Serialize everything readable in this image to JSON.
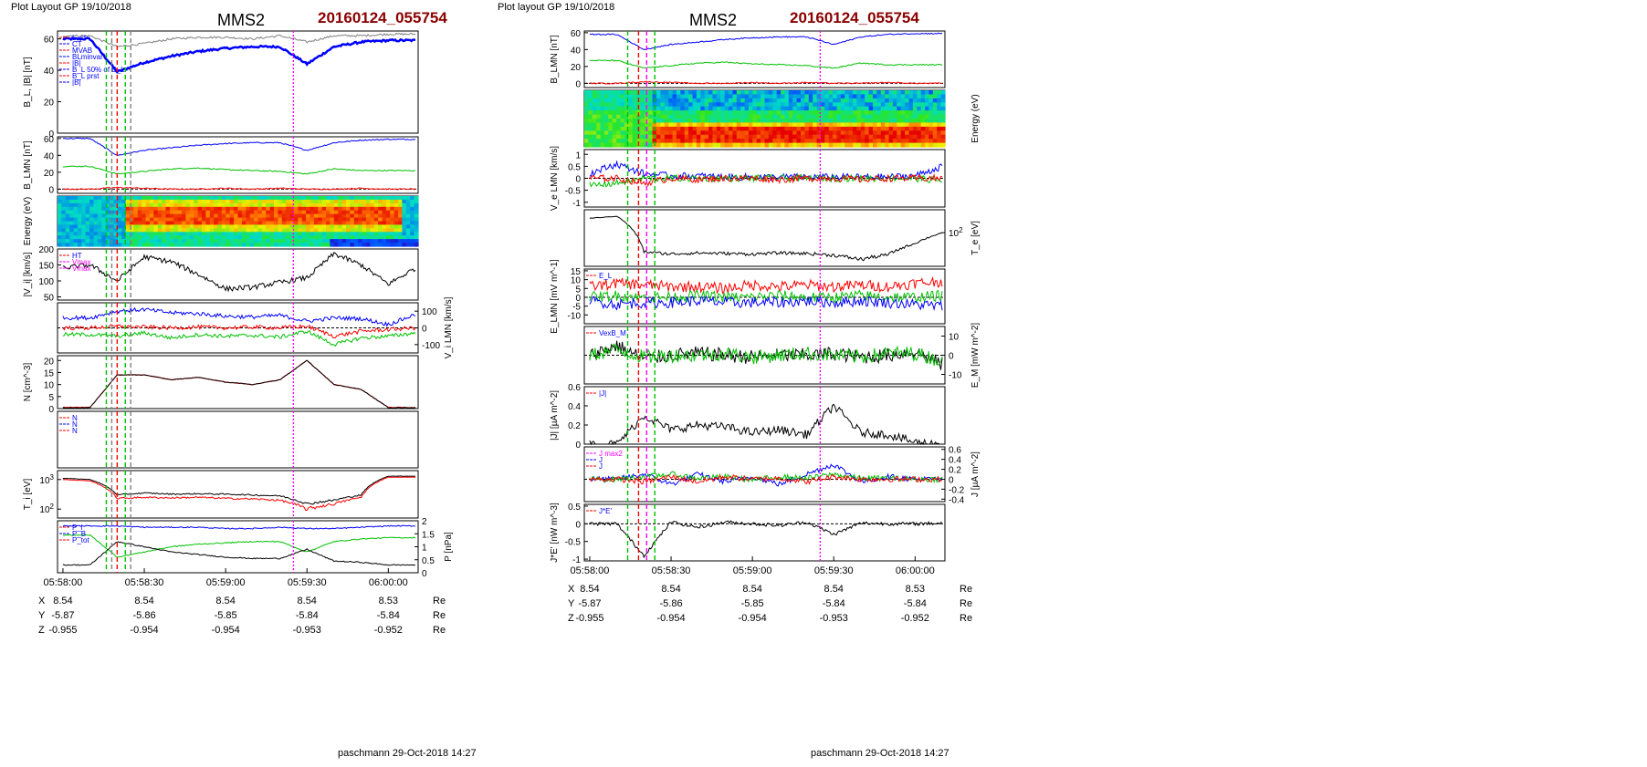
{
  "pages": [
    {
      "layout_label": "Plot Layout GP 19/10/2018",
      "spacecraft": "MMS2",
      "event_id": "20160124_055754",
      "footer": "paschmann 29-Oct-2018 14:27"
    },
    {
      "layout_label": "Plot layout GP 19/10/2018",
      "spacecraft": "MMS2",
      "event_id": "20160124_055754",
      "footer": "paschmann 29-Oct-2018 14:27"
    }
  ],
  "colors": {
    "black": "#000000",
    "blue": "#0000ff",
    "green": "#00c000",
    "red": "#ff0000",
    "magenta": "#ff00ff",
    "gray": "#808080",
    "cyan": "#00a0c0",
    "darkred": "#8b0000"
  },
  "time_axis": {
    "start": "05:57:58",
    "end": "06:00:11",
    "ticks": [
      "05:58:00",
      "05:58:30",
      "05:59:00",
      "05:59:30",
      "06:00:00"
    ]
  },
  "positions": {
    "rows": [
      {
        "label": "X",
        "values": [
          "8.54",
          "8.54",
          "8.54",
          "8.54",
          "8.53"
        ],
        "unit": "Re"
      },
      {
        "label": "Y",
        "values": [
          "-5.87",
          "-5.86",
          "-5.85",
          "-5.84",
          "-5.84"
        ],
        "unit": "Re"
      },
      {
        "label": "Z",
        "values": [
          "-0.955",
          "-0.954",
          "-0.954",
          "-0.953",
          "-0.952"
        ],
        "unit": "Re"
      }
    ]
  },
  "chart_data": [
    {
      "type": "line",
      "page": "left",
      "ylabel": "B_L, |B| [nT]",
      "ylim": [
        0,
        65
      ],
      "yticks": [
        0,
        20,
        40,
        60
      ],
      "legend": [
        "L_ct",
        "CT",
        "MVAB",
        "BLminvar",
        "|B|",
        "B_L 50% of B_L",
        "B_L prst",
        "|B|"
      ],
      "x_min": [
        0,
        10,
        20,
        30,
        40,
        50,
        60,
        70,
        80,
        90,
        100,
        110,
        120,
        130
      ],
      "series": [
        {
          "name": "B_L",
          "values": [
            60,
            60,
            39,
            45,
            49,
            52,
            54,
            55,
            55,
            44,
            55,
            58,
            59,
            59
          ]
        },
        {
          "name": "|B|",
          "values": [
            62,
            62,
            55,
            57,
            60,
            61,
            61,
            60,
            62,
            58,
            62,
            62,
            63,
            63
          ]
        }
      ]
    },
    {
      "type": "line",
      "page": "left",
      "ylabel": "B_LMN [nT]",
      "ylim": [
        -5,
        62
      ],
      "yticks": [
        0,
        20,
        40,
        60
      ],
      "x_min": [
        0,
        10,
        20,
        30,
        40,
        50,
        60,
        70,
        80,
        90,
        100,
        110,
        120,
        130
      ],
      "series": [
        {
          "name": "B_L",
          "values": [
            60,
            60,
            40,
            46,
            49,
            52,
            54,
            55,
            55,
            46,
            55,
            58,
            59,
            59
          ]
        },
        {
          "name": "B_M",
          "values": [
            27,
            27,
            18,
            21,
            24,
            25,
            23,
            22,
            21,
            18,
            24,
            22,
            22,
            22
          ]
        },
        {
          "name": "B_N",
          "values": [
            0,
            0,
            2,
            1,
            0,
            0,
            1,
            0,
            1,
            0,
            0,
            1,
            0,
            0
          ]
        }
      ]
    },
    {
      "type": "heatmap",
      "page": "left",
      "ylabel": "Energy (eV)",
      "yticks": [
        "10^2",
        "10^3",
        "10^4"
      ]
    },
    {
      "type": "line",
      "page": "left",
      "ylabel": "|V_i| [km/s]",
      "ylim": [
        40,
        200
      ],
      "yticks": [
        50,
        100,
        150,
        200
      ],
      "legend": [
        "HT",
        "Vmax",
        "Vmax"
      ],
      "x_min": [
        0,
        10,
        20,
        30,
        40,
        50,
        60,
        70,
        80,
        90,
        100,
        110,
        120,
        130
      ],
      "series": [
        {
          "name": "|V_i|",
          "values": [
            140,
            150,
            100,
            175,
            160,
            120,
            75,
            80,
            95,
            110,
            185,
            150,
            90,
            140
          ]
        }
      ]
    },
    {
      "type": "line",
      "page": "left",
      "ylabel": "V_i LMN [km/s]",
      "ylim": [
        -150,
        150
      ],
      "yticks": [
        -100,
        0,
        100
      ],
      "x_min": [
        0,
        10,
        20,
        30,
        40,
        50,
        60,
        70,
        80,
        90,
        100,
        110,
        120,
        130
      ],
      "series": [
        {
          "name": "V_L",
          "values": [
            60,
            60,
            100,
            110,
            90,
            85,
            70,
            65,
            75,
            40,
            60,
            55,
            20,
            80
          ]
        },
        {
          "name": "V_M",
          "values": [
            -40,
            -40,
            -50,
            -30,
            -60,
            -40,
            -50,
            -45,
            -55,
            -20,
            -100,
            -60,
            -50,
            -30
          ]
        },
        {
          "name": "V_N",
          "values": [
            0,
            0,
            10,
            5,
            0,
            5,
            0,
            5,
            0,
            10,
            -50,
            -20,
            -10,
            0
          ]
        }
      ]
    },
    {
      "type": "line",
      "page": "left",
      "ylabel": "N [cm^-3]",
      "ylim": [
        0,
        22
      ],
      "yticks": [
        0,
        5,
        10,
        15,
        20
      ],
      "x_min": [
        0,
        10,
        20,
        30,
        40,
        50,
        60,
        70,
        80,
        90,
        100,
        110,
        120,
        130
      ],
      "series": [
        {
          "name": "Ne",
          "values": [
            0.5,
            0.5,
            14,
            14,
            12,
            13,
            11,
            10,
            12,
            20,
            10,
            8,
            0.5,
            0.5
          ]
        },
        {
          "name": "Ni",
          "values": [
            0.4,
            0.4,
            14,
            14,
            12,
            13,
            11,
            10,
            12,
            20,
            10,
            8,
            0.4,
            0.4
          ]
        }
      ]
    },
    {
      "type": "line",
      "page": "left",
      "legend": [
        "N",
        "N",
        "N"
      ]
    },
    {
      "type": "line",
      "page": "left",
      "ylabel": "T_i [eV]",
      "ylim": [
        50,
        2000
      ],
      "yticks": [
        "10^2",
        "10^3"
      ],
      "x_min": [
        0,
        10,
        20,
        30,
        40,
        50,
        60,
        70,
        80,
        90,
        100,
        110,
        120,
        130
      ],
      "series": [
        {
          "name": "T_par",
          "values": [
            1100,
            1000,
            300,
            350,
            320,
            330,
            320,
            300,
            280,
            150,
            200,
            300,
            1300,
            1300
          ]
        },
        {
          "name": "T_perp",
          "values": [
            1000,
            900,
            230,
            250,
            240,
            250,
            230,
            220,
            200,
            100,
            150,
            250,
            1200,
            1200
          ]
        }
      ]
    },
    {
      "type": "line",
      "page": "left",
      "ylabel": "P [nPa]",
      "ylim": [
        0,
        2.0
      ],
      "yticks": [
        0.0,
        0.5,
        1.0,
        1.5,
        2.0
      ],
      "legend": [
        "P_i",
        "P_B",
        "P_tot"
      ],
      "x_min": [
        0,
        10,
        20,
        30,
        40,
        50,
        60,
        70,
        80,
        90,
        100,
        110,
        120,
        130
      ],
      "series": [
        {
          "name": "P_tot",
          "values": [
            1.8,
            1.8,
            1.8,
            1.75,
            1.75,
            1.75,
            1.7,
            1.7,
            1.75,
            1.7,
            1.7,
            1.75,
            1.8,
            1.8
          ]
        },
        {
          "name": "P_B",
          "values": [
            1.45,
            1.45,
            0.6,
            0.8,
            1.0,
            1.1,
            1.15,
            1.2,
            1.2,
            0.8,
            1.2,
            1.3,
            1.35,
            1.35
          ]
        },
        {
          "name": "P_i",
          "values": [
            0.3,
            0.3,
            1.2,
            1.0,
            0.8,
            0.7,
            0.6,
            0.55,
            0.55,
            0.9,
            0.45,
            0.4,
            0.3,
            0.3
          ]
        }
      ]
    },
    {
      "type": "line",
      "page": "right",
      "ylabel": "B_LMN [nT]",
      "ylim": [
        -5,
        62
      ],
      "yticks": [
        0,
        20,
        40,
        60
      ],
      "x_min": [
        0,
        10,
        20,
        30,
        40,
        50,
        60,
        70,
        80,
        90,
        100,
        110,
        120,
        130
      ],
      "series": [
        {
          "name": "B_L",
          "values": [
            58,
            58,
            40,
            46,
            49,
            52,
            54,
            55,
            55,
            46,
            55,
            58,
            59,
            59
          ]
        },
        {
          "name": "B_M",
          "values": [
            27,
            27,
            18,
            21,
            24,
            25,
            23,
            22,
            21,
            18,
            24,
            22,
            22,
            22
          ]
        },
        {
          "name": "B_N",
          "values": [
            0,
            0,
            2,
            1,
            0,
            0,
            1,
            0,
            1,
            0,
            0,
            1,
            0,
            0
          ]
        }
      ]
    },
    {
      "type": "heatmap",
      "page": "right",
      "ylabel": "Energy (eV)",
      "yticks": [
        "10^1",
        "10^2",
        "10^3",
        "10^4"
      ]
    },
    {
      "type": "line",
      "page": "right",
      "ylabel": "V_e LMN [km/s]",
      "ylim": [
        -1.2,
        1.2
      ],
      "yticks": [
        -1.0,
        -0.5,
        0.0,
        0.5,
        1.0
      ],
      "x_min": [
        0,
        10,
        20,
        30,
        40,
        50,
        60,
        70,
        80,
        90,
        100,
        110,
        120,
        130
      ],
      "series": [
        {
          "name": "V_L",
          "values": [
            0.2,
            0.6,
            0.2,
            0.1,
            0.1,
            0.05,
            0.05,
            0.05,
            0.05,
            0.05,
            0.05,
            0.05,
            0.1,
            0.5
          ]
        },
        {
          "name": "V_M",
          "values": [
            -0.3,
            -0.2,
            0.0,
            0.0,
            0.0,
            0.0,
            0.0,
            0.0,
            0.0,
            0.0,
            0.0,
            0.0,
            0.0,
            -0.1
          ]
        },
        {
          "name": "V_N",
          "values": [
            0.0,
            0.0,
            -0.2,
            0.0,
            -0.05,
            0.0,
            0.0,
            -0.05,
            0.0,
            0.0,
            -0.05,
            0.0,
            0.0,
            0.0
          ]
        }
      ]
    },
    {
      "type": "line",
      "page": "right",
      "ylabel": "T_e [eV]",
      "ylim": [
        20,
        300
      ],
      "yticks": [
        "10^2"
      ],
      "x_min": [
        0,
        10,
        20,
        30,
        40,
        50,
        60,
        70,
        80,
        90,
        100,
        110,
        120,
        130
      ],
      "series": [
        {
          "name": "T_e",
          "values": [
            200,
            220,
            40,
            36,
            38,
            37,
            36,
            38,
            37,
            34,
            28,
            35,
            60,
            100
          ]
        }
      ]
    },
    {
      "type": "line",
      "page": "right",
      "ylabel": "E_LMN [mV m^-1]",
      "ylim": [
        -15,
        16
      ],
      "yticks": [
        -10,
        -5,
        0,
        5,
        10,
        15
      ],
      "legend": [
        "E_L"
      ],
      "x_min": [
        0,
        10,
        20,
        30,
        40,
        50,
        60,
        70,
        80,
        90,
        100,
        110,
        120,
        130
      ],
      "series": [
        {
          "name": "E_N",
          "values": [
            6,
            8,
            7,
            6,
            6,
            5,
            7,
            6,
            7,
            6,
            7,
            6,
            8,
            9
          ]
        },
        {
          "name": "E_M",
          "values": [
            0,
            1,
            0,
            0,
            1,
            0,
            0,
            1,
            0,
            0,
            1,
            0,
            0,
            1
          ]
        },
        {
          "name": "E_L",
          "values": [
            -2,
            -4,
            -3,
            -3,
            -2,
            -3,
            -3,
            -3,
            -2,
            -3,
            -2,
            -3,
            -4,
            -5
          ]
        }
      ]
    },
    {
      "type": "line",
      "page": "right",
      "ylabel": "E_M [mW m^-2]",
      "ylim": [
        -15,
        15
      ],
      "yticks": [
        -10,
        0,
        10
      ],
      "legend": [
        "VexB_M"
      ],
      "x_min": [
        0,
        10,
        20,
        30,
        40,
        50,
        60,
        70,
        80,
        90,
        100,
        110,
        120,
        130
      ],
      "series": [
        {
          "name": "VexB_M",
          "values": [
            0,
            5,
            -2,
            0,
            1,
            0,
            -1,
            0,
            0,
            1,
            -1,
            0,
            2,
            -5
          ]
        },
        {
          "name": "E_M",
          "values": [
            0,
            3,
            -1,
            0,
            0,
            1,
            -1,
            0,
            1,
            0,
            -1,
            1,
            1,
            -3
          ]
        }
      ]
    },
    {
      "type": "line",
      "page": "right",
      "ylabel": "|J| [µA m^-2]",
      "ylim": [
        0,
        0.6
      ],
      "yticks": [
        0.0,
        0.2,
        0.4,
        0.6
      ],
      "legend": [
        "|J|"
      ],
      "x_min": [
        0,
        10,
        20,
        30,
        40,
        50,
        60,
        70,
        80,
        90,
        100,
        110,
        120,
        130
      ],
      "series": [
        {
          "name": "|J|",
          "values": [
            0,
            0,
            0.3,
            0.15,
            0.2,
            0.18,
            0.12,
            0.15,
            0.1,
            0.4,
            0.12,
            0.1,
            0.02,
            0
          ]
        }
      ]
    },
    {
      "type": "line",
      "page": "right",
      "ylabel": "J [µA m^-2]",
      "ylim": [
        -0.45,
        0.65
      ],
      "yticks": [
        -0.4,
        -0.2,
        0.0,
        0.2,
        0.4,
        0.6
      ],
      "legend": [
        "J max2",
        "J",
        "J"
      ],
      "x_min": [
        0,
        10,
        20,
        30,
        40,
        50,
        60,
        70,
        80,
        90,
        100,
        110,
        120,
        130
      ],
      "series": [
        {
          "name": "J_L",
          "values": [
            0,
            0,
            0.1,
            -0.1,
            0.1,
            -0.05,
            0.05,
            -0.1,
            0.1,
            0.3,
            -0.05,
            0.05,
            0,
            0
          ]
        },
        {
          "name": "J_M",
          "values": [
            0,
            0,
            0.05,
            0.1,
            0.02,
            0.05,
            -0.02,
            0.05,
            0.02,
            0.1,
            0.02,
            0.02,
            0,
            0
          ]
        },
        {
          "name": "J_N",
          "values": [
            0,
            0,
            -0.05,
            0.05,
            -0.05,
            0.05,
            0,
            0.02,
            -0.05,
            0.05,
            0,
            0,
            0,
            0
          ]
        }
      ]
    },
    {
      "type": "line",
      "page": "right",
      "ylabel": "J*E' [nW m^-3]",
      "ylim": [
        -1.05,
        0.55
      ],
      "yticks": [
        -1.0,
        -0.5,
        0.0,
        0.5
      ],
      "legend": [
        "J*E'"
      ],
      "x_min": [
        0,
        10,
        20,
        30,
        40,
        50,
        60,
        70,
        80,
        90,
        100,
        110,
        120,
        130
      ],
      "series": [
        {
          "name": "J*E'",
          "values": [
            0,
            0,
            -0.9,
            0.05,
            -0.1,
            0.05,
            0,
            -0.05,
            0.05,
            -0.3,
            0.02,
            0,
            0,
            0.02
          ]
        }
      ]
    }
  ]
}
